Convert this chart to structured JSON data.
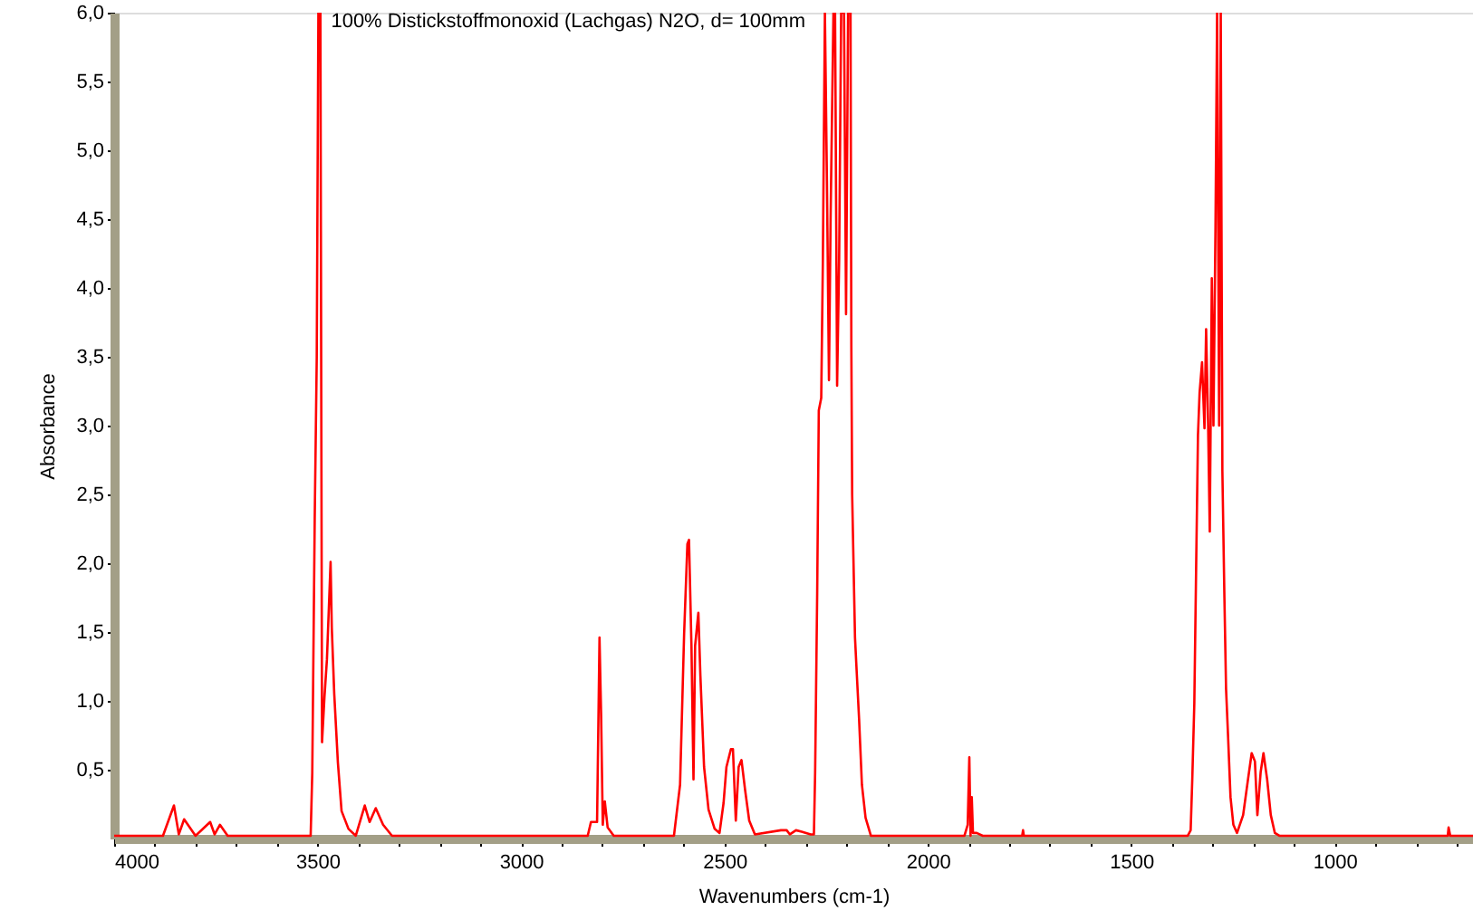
{
  "chart_data": {
    "type": "line",
    "title": "100% Distickstoffmonoxid (Lachgas) N2O, d= 100mm",
    "xlabel": "Wavenumbers (cm-1)",
    "ylabel": "Absorbance",
    "xlim": [
      4000,
      660
    ],
    "ylim": [
      0,
      6
    ],
    "xticks": [
      4000,
      {
        "value": 3900,
        "label": null
      },
      {
        "value": 3800,
        "label": null
      },
      {
        "value": 3700,
        "label": null
      },
      {
        "value": 3600,
        "label": null
      },
      3500,
      {
        "value": 3400,
        "label": null
      },
      {
        "value": 3300,
        "label": null
      },
      {
        "value": 3200,
        "label": null
      },
      {
        "value": 3100,
        "label": null
      },
      3000,
      {
        "value": 2900,
        "label": null
      },
      {
        "value": 2800,
        "label": null
      },
      {
        "value": 2700,
        "label": null
      },
      {
        "value": 2600,
        "label": null
      },
      2500,
      {
        "value": 2400,
        "label": null
      },
      {
        "value": 2300,
        "label": null
      },
      {
        "value": 2200,
        "label": null
      },
      {
        "value": 2100,
        "label": null
      },
      2000,
      {
        "value": 1900,
        "label": null
      },
      {
        "value": 1800,
        "label": null
      },
      {
        "value": 1700,
        "label": null
      },
      {
        "value": 1600,
        "label": null
      },
      1500,
      {
        "value": 1400,
        "label": null
      },
      {
        "value": 1300,
        "label": null
      },
      {
        "value": 1200,
        "label": null
      },
      {
        "value": 1100,
        "label": null
      },
      1000,
      {
        "value": 900,
        "label": null
      },
      {
        "value": 800,
        "label": null
      },
      {
        "value": 700,
        "label": null
      }
    ],
    "yticks": [
      {
        "value": 0.5,
        "label": "0,5"
      },
      {
        "value": 1.0,
        "label": "1,0"
      },
      {
        "value": 1.5,
        "label": "1,5"
      },
      {
        "value": 2.0,
        "label": "2,0"
      },
      {
        "value": 2.5,
        "label": "2,5"
      },
      {
        "value": 3.0,
        "label": "3,0"
      },
      {
        "value": 3.5,
        "label": "3,5"
      },
      {
        "value": 4.0,
        "label": "4,0"
      },
      {
        "value": 4.5,
        "label": "4,5"
      },
      {
        "value": 5.0,
        "label": "5,0"
      },
      {
        "value": 5.5,
        "label": "5,5"
      },
      {
        "value": 6.0,
        "label": "6,0"
      }
    ],
    "grid": false,
    "legend": false,
    "marker": "none",
    "line_style": "solid",
    "series": [
      {
        "color": "#ff0000",
        "x": [
          4000,
          3880,
          3853,
          3841,
          3828,
          3800,
          3764,
          3753,
          3740,
          3721,
          3517,
          3513,
          3507,
          3502,
          3498,
          3493,
          3489,
          3483,
          3477,
          3468,
          3465,
          3459,
          3450,
          3441,
          3424,
          3406,
          3384,
          3372,
          3357,
          3339,
          3317,
          2836,
          2828,
          2813,
          2807,
          2803,
          2799,
          2794,
          2787,
          2772,
          2624,
          2609,
          2599,
          2591,
          2587,
          2581,
          2576,
          2572,
          2564,
          2559,
          2550,
          2539,
          2524,
          2512,
          2502,
          2495,
          2484,
          2479,
          2472,
          2465,
          2458,
          2449,
          2439,
          2425,
          2361,
          2347,
          2339,
          2324,
          2310,
          2288,
          2280,
          2277,
          2272,
          2268,
          2262,
          2258,
          2253,
          2248,
          2243,
          2239,
          2232,
          2228,
          2223,
          2218,
          2213,
          2206,
          2201,
          2196,
          2190,
          2188,
          2186,
          2179,
          2175,
          2169,
          2162,
          2153,
          2140,
          1910,
          1902,
          1898,
          1895,
          1892,
          1889,
          1880,
          1865,
          1768,
          1766,
          1764,
          1361,
          1354,
          1350,
          1345,
          1341,
          1336,
          1332,
          1326,
          1320,
          1316,
          1311,
          1307,
          1302,
          1298,
          1293,
          1289,
          1284,
          1280,
          1276,
          1271,
          1267,
          1262,
          1256,
          1249,
          1240,
          1225,
          1213,
          1204,
          1196,
          1190,
          1182,
          1175,
          1166,
          1157,
          1147,
          1136,
          722,
          720,
          716,
          660
        ],
        "values": [
          0.02,
          0.02,
          0.24,
          0.03,
          0.14,
          0.02,
          0.12,
          0.03,
          0.1,
          0.02,
          0.02,
          0.48,
          2.32,
          3.5,
          6.0,
          6.0,
          0.7,
          1.03,
          1.3,
          2.01,
          1.53,
          1.05,
          0.55,
          0.2,
          0.07,
          0.02,
          0.24,
          0.12,
          0.22,
          0.1,
          0.02,
          0.02,
          0.12,
          0.12,
          1.46,
          0.89,
          0.1,
          0.27,
          0.08,
          0.02,
          0.02,
          0.39,
          1.49,
          2.14,
          2.17,
          1.4,
          0.43,
          1.4,
          1.64,
          1.18,
          0.52,
          0.21,
          0.07,
          0.04,
          0.26,
          0.52,
          0.65,
          0.65,
          0.13,
          0.52,
          0.57,
          0.35,
          0.13,
          0.03,
          0.06,
          0.06,
          0.03,
          0.06,
          0.05,
          0.03,
          0.03,
          0.48,
          1.77,
          3.11,
          3.2,
          4.2,
          6.0,
          4.78,
          3.33,
          4.5,
          6.0,
          6.0,
          3.29,
          4.2,
          6.0,
          6.0,
          3.81,
          6.0,
          6.0,
          3.57,
          2.5,
          1.46,
          1.22,
          0.87,
          0.39,
          0.15,
          0.02,
          0.02,
          0.1,
          0.59,
          0.02,
          0.3,
          0.04,
          0.04,
          0.02,
          0.02,
          0.06,
          0.02,
          0.02,
          0.06,
          0.43,
          0.98,
          1.86,
          2.93,
          3.24,
          3.46,
          2.98,
          3.7,
          3.0,
          2.23,
          4.07,
          3.0,
          4.43,
          6.0,
          3.0,
          6.0,
          2.67,
          1.75,
          1.09,
          0.74,
          0.3,
          0.1,
          0.04,
          0.17,
          0.43,
          0.62,
          0.56,
          0.17,
          0.48,
          0.62,
          0.43,
          0.17,
          0.04,
          0.02,
          0.02,
          0.08,
          0.02,
          0.02
        ]
      }
    ]
  }
}
